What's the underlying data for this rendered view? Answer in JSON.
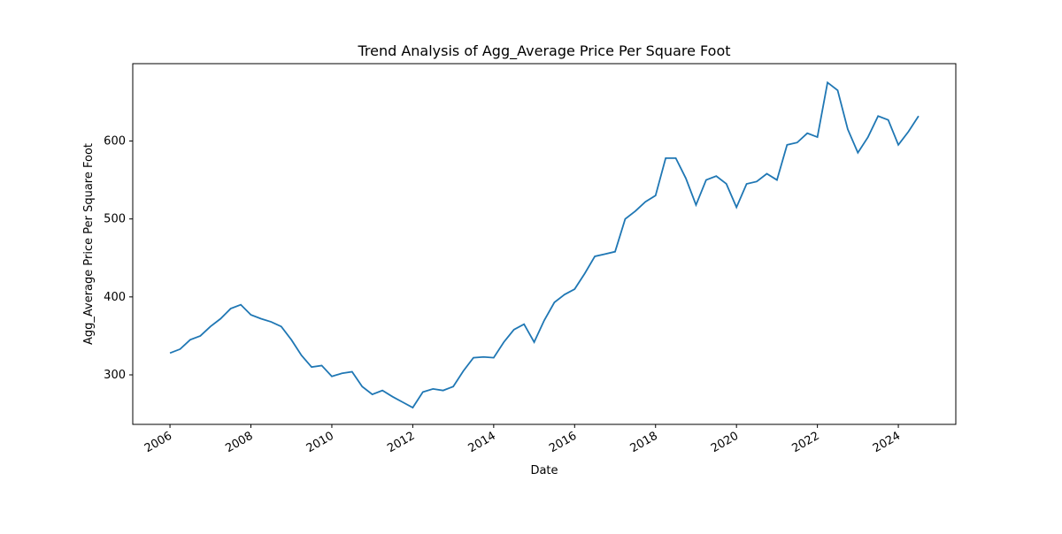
{
  "chart_data": {
    "type": "line",
    "title": "Trend Analysis of Agg_Average Price Per Square Foot",
    "x_label": "Date",
    "y_label": "Agg_Average Price Per Square Foot",
    "x": [
      2006.0,
      2006.25,
      2006.5,
      2006.75,
      2007.0,
      2007.25,
      2007.5,
      2007.75,
      2008.0,
      2008.25,
      2008.5,
      2008.75,
      2009.0,
      2009.25,
      2009.5,
      2009.75,
      2010.0,
      2010.25,
      2010.5,
      2010.75,
      2011.0,
      2011.25,
      2011.5,
      2011.75,
      2012.0,
      2012.25,
      2012.5,
      2012.75,
      2013.0,
      2013.25,
      2013.5,
      2013.75,
      2014.0,
      2014.25,
      2014.5,
      2014.75,
      2015.0,
      2015.25,
      2015.5,
      2015.75,
      2016.0,
      2016.25,
      2016.5,
      2016.75,
      2017.0,
      2017.25,
      2017.5,
      2017.75,
      2018.0,
      2018.25,
      2018.5,
      2018.75,
      2019.0,
      2019.25,
      2019.5,
      2019.75,
      2020.0,
      2020.25,
      2020.5,
      2020.75,
      2021.0,
      2021.25,
      2021.5,
      2021.75,
      2022.0,
      2022.25,
      2022.5,
      2022.75,
      2023.0,
      2023.25,
      2023.5,
      2023.75,
      2024.0,
      2024.25,
      2024.5
    ],
    "series": [
      {
        "name": "Agg_Average Price Per Square Foot",
        "color": "#1f77b4",
        "values": [
          328,
          333,
          345,
          350,
          362,
          372,
          385,
          390,
          377,
          372,
          368,
          362,
          345,
          325,
          310,
          312,
          298,
          302,
          304,
          285,
          275,
          280,
          272,
          265,
          258,
          278,
          282,
          280,
          285,
          305,
          322,
          323,
          322,
          342,
          358,
          365,
          342,
          370,
          393,
          403,
          410,
          430,
          452,
          455,
          458,
          500,
          510,
          522,
          530,
          578,
          578,
          552,
          518,
          550,
          555,
          545,
          515,
          545,
          548,
          558,
          550,
          595,
          598,
          610,
          605,
          675,
          665,
          615,
          585,
          605,
          632,
          627,
          595,
          612,
          632
        ]
      }
    ],
    "xlim": [
      2005.08,
      2025.42
    ],
    "xticks": [
      2006,
      2008,
      2010,
      2012,
      2014,
      2016,
      2018,
      2020,
      2022,
      2024
    ],
    "ylim": [
      236.5,
      699.2
    ],
    "yticks": [
      300,
      400,
      500,
      600
    ]
  }
}
